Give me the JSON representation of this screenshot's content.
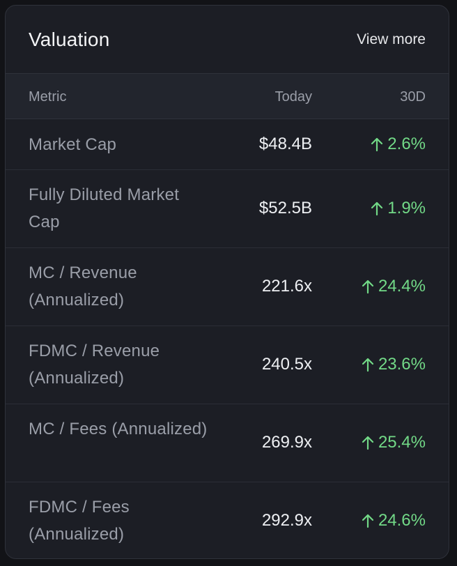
{
  "card": {
    "title": "Valuation",
    "view_more_label": "View more"
  },
  "table": {
    "headers": {
      "metric": "Metric",
      "today": "Today",
      "change": "30D"
    },
    "rows": [
      {
        "metric": "Market Cap",
        "today": "$48.4B",
        "change": "2.6%",
        "trend": "up"
      },
      {
        "metric": "Fully Diluted Market Cap",
        "today": "$52.5B",
        "change": "1.9%",
        "trend": "up"
      },
      {
        "metric": "MC / Revenue (Annualized)",
        "today": "221.6x",
        "change": "24.4%",
        "trend": "up"
      },
      {
        "metric": "FDMC / Revenue (Annualized)",
        "today": "240.5x",
        "change": "23.6%",
        "trend": "up"
      },
      {
        "metric": "MC / Fees (Annualized)",
        "today": "269.9x",
        "change": "25.4%",
        "trend": "up"
      },
      {
        "metric": "FDMC / Fees (Annualized)",
        "today": "292.9x",
        "change": "24.6%",
        "trend": "up"
      }
    ]
  },
  "colors": {
    "background": "#121317",
    "card": "#1c1e25",
    "header_row": "#22252d",
    "positive": "#72d987",
    "muted_text": "#9a9ea8",
    "primary_text": "#eef0f3"
  },
  "icons": {
    "trend_up": "arrow-up-icon"
  }
}
